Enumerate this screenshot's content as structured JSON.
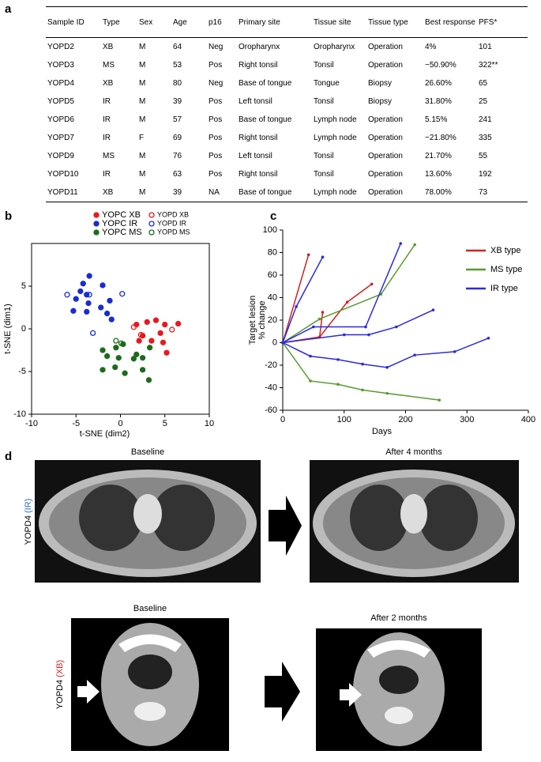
{
  "panel_labels": [
    "a",
    "b",
    "c",
    "d"
  ],
  "table": {
    "header": [
      "Sample ID",
      "Type",
      "Sex",
      "Age",
      "p16",
      "Primary site",
      "Tissue site",
      "Tissue type",
      "Best response",
      "PFS*"
    ],
    "rows": [
      [
        "YOPD2",
        "XB",
        "M",
        "64",
        "Neg",
        "Oropharynx",
        "Oropharynx",
        "Operation",
        "4%",
        "101"
      ],
      [
        "YOPD3",
        "MS",
        "M",
        "53",
        "Pos",
        "Right tonsil",
        "Tonsil",
        "Operation",
        "−50.90%",
        "322**"
      ],
      [
        "YOPD4",
        "XB",
        "M",
        "80",
        "Neg",
        "Base of tongue",
        "Tongue",
        "Biopsy",
        "26.60%",
        "65"
      ],
      [
        "YOPD5",
        "IR",
        "M",
        "39",
        "Pos",
        "Left tonsil",
        "Tonsil",
        "Biopsy",
        "31.80%",
        "25"
      ],
      [
        "YOPD6",
        "IR",
        "M",
        "57",
        "Pos",
        "Base of tongue",
        "Lymph node",
        "Operation",
        "5.15%",
        "241"
      ],
      [
        "YOPD7",
        "IR",
        "F",
        "69",
        "Pos",
        "Right tonsil",
        "Lymph node",
        "Operation",
        "−21.80%",
        "335"
      ],
      [
        "YOPD9",
        "MS",
        "M",
        "76",
        "Pos",
        "Left tonsil",
        "Tonsil",
        "Operation",
        "21.70%",
        "55"
      ],
      [
        "YOPD10",
        "IR",
        "M",
        "63",
        "Pos",
        "Right tonsil",
        "Tonsil",
        "Operation",
        "13.60%",
        "192"
      ],
      [
        "YOPD11",
        "XB",
        "M",
        "39",
        "NA",
        "Base of tongue",
        "Lymph node",
        "Operation",
        "78.00%",
        "73"
      ]
    ]
  },
  "chart_data": [
    {
      "type": "scatter",
      "xlabel": "t-SNE (dim2)",
      "ylabel": "t-SNE (dim1)",
      "xlim": [
        -10,
        10
      ],
      "ylim": [
        -10,
        10
      ],
      "xticks": [
        -10,
        -5,
        0,
        5,
        10
      ],
      "yticks": [
        -10,
        -5,
        0,
        5
      ],
      "series": [
        {
          "name": "YOPC XB",
          "color": "#e8191e",
          "filled": true,
          "x": [
            1.8,
            3,
            4,
            5,
            6.5,
            4.5,
            2.5,
            3.5,
            4.8,
            5.2,
            2.1
          ],
          "y": [
            0.5,
            0.8,
            1,
            0.5,
            0.6,
            -0.5,
            -0.8,
            -1.4,
            -1.6,
            -2.8,
            -1.4
          ]
        },
        {
          "name": "YOPC IR",
          "color": "#1a2bd6",
          "filled": true,
          "x": [
            -3.5,
            -4.2,
            -2,
            -4.5,
            -3.8,
            -5,
            -3.6,
            -2.2,
            -3.8,
            -5.3,
            -1.5,
            -1.2,
            -1
          ],
          "y": [
            6.2,
            5.3,
            5.1,
            4.4,
            4,
            3.5,
            3,
            2.5,
            2,
            2.1,
            1.8,
            3.3,
            1.1
          ]
        },
        {
          "name": "YOPC MS",
          "color": "#1d6b1d",
          "filled": true,
          "x": [
            -2,
            -0.5,
            0.3,
            -1.5,
            -0.2,
            1.5,
            2.5,
            -2,
            0.5,
            2.5,
            3.2,
            1.8,
            3.3,
            -0.6
          ],
          "y": [
            -2.5,
            -2.2,
            -1.8,
            -3.2,
            -3.4,
            -3.5,
            -3.4,
            -4.8,
            -5.2,
            -4.8,
            -6,
            -3,
            -2.2,
            -4.5
          ]
        },
        {
          "name": "YOPD XB",
          "color": "#e8191e",
          "filled": false,
          "x": [
            1.5,
            2.3,
            5.8
          ],
          "y": [
            0.2,
            -0.7,
            -0.1
          ]
        },
        {
          "name": "YOPD IR",
          "color": "#1a2bd6",
          "filled": false,
          "x": [
            -6,
            -3.5,
            0.2,
            -3.1
          ],
          "y": [
            4,
            4,
            4.1,
            -0.5
          ]
        },
        {
          "name": "YOPD MS",
          "color": "#1d6b1d",
          "filled": false,
          "x": [
            -0.5,
            0.1
          ],
          "y": [
            -1.4,
            -1.7
          ]
        }
      ]
    },
    {
      "type": "line",
      "xlabel": "Days",
      "ylabel": [
        "Target lesion",
        "% change"
      ],
      "xlim": [
        0,
        400
      ],
      "ylim": [
        -60,
        100
      ],
      "xticks": [
        0,
        100,
        200,
        300,
        400
      ],
      "yticks": [
        -60,
        -40,
        -20,
        0,
        20,
        40,
        60,
        80,
        100
      ],
      "series": [
        {
          "name": "XB type",
          "color": "#d42020",
          "lines": [
            {
              "x": [
                0,
                42
              ],
              "y": [
                0,
                78
              ]
            },
            {
              "x": [
                0,
                60,
                65
              ],
              "y": [
                0,
                5,
                27
              ]
            },
            {
              "x": [
                0,
                60,
                105,
                145
              ],
              "y": [
                0,
                5,
                36,
                52
              ]
            }
          ]
        },
        {
          "name": "MS type",
          "color": "#5a9a30",
          "lines": [
            {
              "x": [
                0,
                60,
                160,
                215
              ],
              "y": [
                0,
                21,
                43,
                87
              ]
            },
            {
              "x": [
                0,
                45,
                90,
                130,
                170,
                255
              ],
              "y": [
                0,
                -34,
                -37,
                -42,
                -45,
                -51
              ]
            }
          ]
        },
        {
          "name": "IR type",
          "color": "#2a2ae0",
          "lines": [
            {
              "x": [
                0,
                22,
                65
              ],
              "y": [
                0,
                32,
                76
              ]
            },
            {
              "x": [
                0,
                50,
                135,
                192
              ],
              "y": [
                0,
                14,
                14,
                88
              ]
            },
            {
              "x": [
                0,
                100,
                140,
                185,
                245
              ],
              "y": [
                0,
                7,
                7,
                14,
                29
              ]
            },
            {
              "x": [
                0,
                45,
                90,
                130,
                170,
                215,
                280,
                335
              ],
              "y": [
                0,
                -12,
                -15,
                -19,
                -22,
                -11,
                -8,
                4
              ]
            }
          ]
        }
      ]
    }
  ],
  "images": [
    {
      "label": "YOPD4",
      "subtype": "(IR)",
      "subtype_color": "#2a6ad6",
      "before": "Baseline",
      "after": "After 4 months"
    },
    {
      "label": "YOPD4",
      "subtype": "(XB)",
      "subtype_color": "#e02020",
      "before": "Baseline",
      "after": "After 2 months"
    }
  ]
}
